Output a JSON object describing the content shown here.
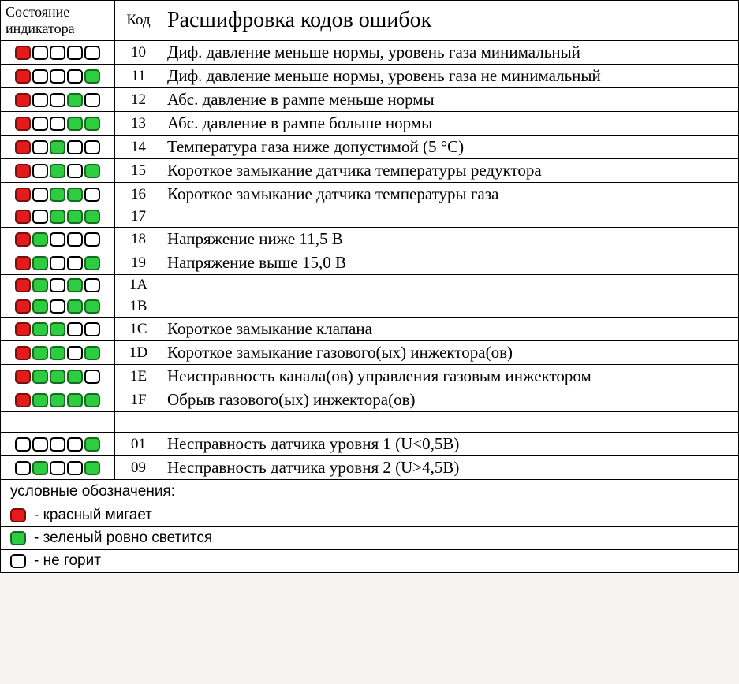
{
  "header": {
    "indicator": "Состояние индикатора",
    "code": "Код",
    "description": "Расшифровка кодов ошибок"
  },
  "colors": {
    "red": "#e31b1b",
    "green": "#2ecc40",
    "off": "#ffffff",
    "border_red": "#7a0e0e",
    "border_green": "#176b1f",
    "border_off": "#000000"
  },
  "rows": [
    {
      "leds": [
        "red",
        "off",
        "off",
        "off",
        "off"
      ],
      "code": "10",
      "desc": "Диф. давление меньше нормы, уровень газа минимальный"
    },
    {
      "leds": [
        "red",
        "off",
        "off",
        "off",
        "green"
      ],
      "code": "11",
      "desc": "Диф. давление меньше нормы, уровень газа не минимальный"
    },
    {
      "leds": [
        "red",
        "off",
        "off",
        "green",
        "off"
      ],
      "code": "12",
      "desc": "Абс. давление в рампе меньше нормы"
    },
    {
      "leds": [
        "red",
        "off",
        "off",
        "green",
        "green"
      ],
      "code": "13",
      "desc": "Абс. давление в рампе больше нормы"
    },
    {
      "leds": [
        "red",
        "off",
        "green",
        "off",
        "off"
      ],
      "code": "14",
      "desc": "Температура газа ниже допустимой (5 °С)"
    },
    {
      "leds": [
        "red",
        "off",
        "green",
        "off",
        "green"
      ],
      "code": "15",
      "desc": "Короткое замыкание датчика температуры редуктора"
    },
    {
      "leds": [
        "red",
        "off",
        "green",
        "green",
        "off"
      ],
      "code": "16",
      "desc": "Короткое замыкание датчика температуры газа"
    },
    {
      "leds": [
        "red",
        "off",
        "green",
        "green",
        "green"
      ],
      "code": "17",
      "desc": ""
    },
    {
      "leds": [
        "red",
        "green",
        "off",
        "off",
        "off"
      ],
      "code": "18",
      "desc": "Напряжение ниже  11,5 В"
    },
    {
      "leds": [
        "red",
        "green",
        "off",
        "off",
        "green"
      ],
      "code": "19",
      "desc": "Напряжение выше 15,0 В"
    },
    {
      "leds": [
        "red",
        "green",
        "off",
        "green",
        "off"
      ],
      "code": "1A",
      "desc": ""
    },
    {
      "leds": [
        "red",
        "green",
        "off",
        "green",
        "green"
      ],
      "code": "1B",
      "desc": ""
    },
    {
      "leds": [
        "red",
        "green",
        "green",
        "off",
        "off"
      ],
      "code": "1C",
      "desc": "Короткое замыкание клапана"
    },
    {
      "leds": [
        "red",
        "green",
        "green",
        "off",
        "green"
      ],
      "code": "1D",
      "desc": "Короткое замыкание газового(ых) инжектора(ов)"
    },
    {
      "leds": [
        "red",
        "green",
        "green",
        "green",
        "off"
      ],
      "code": "1E",
      "desc": "Неисправность канала(ов) управления газовым инжектором"
    },
    {
      "leds": [
        "red",
        "green",
        "green",
        "green",
        "green"
      ],
      "code": "1F",
      "desc": "Обрыв газового(ых) инжектора(ов)"
    }
  ],
  "rows2": [
    {
      "leds": [
        "off",
        "off",
        "off",
        "off",
        "green"
      ],
      "code": "01",
      "desc": "Несправность датчика уровня 1 (U<0,5В)"
    },
    {
      "leds": [
        "off",
        "green",
        "off",
        "off",
        "green"
      ],
      "code": "09",
      "desc": "Несправность датчика уровня 2 (U>4,5В)"
    }
  ],
  "legend": {
    "title": "условные обозначения:",
    "items": [
      {
        "led": "red",
        "text": "- красный мигает"
      },
      {
        "led": "green",
        "text": "- зеленый ровно светится"
      },
      {
        "led": "off",
        "text": "- не горит"
      }
    ]
  }
}
